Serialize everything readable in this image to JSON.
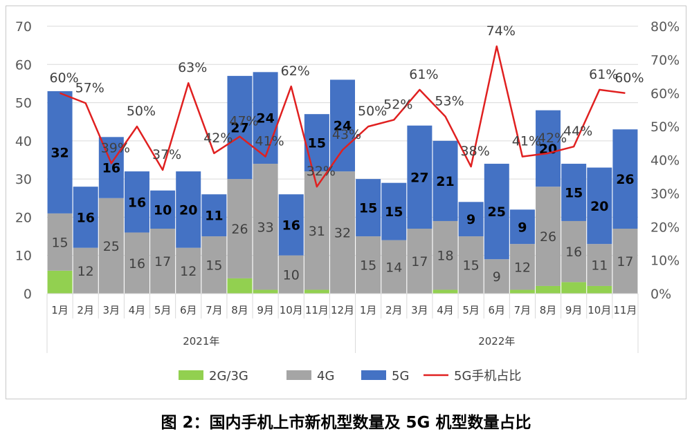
{
  "chart_data": {
    "type": "bar",
    "stacked": true,
    "categories": [
      "1月",
      "2月",
      "3月",
      "4月",
      "5月",
      "6月",
      "7月",
      "8月",
      "9月",
      "10月",
      "11月",
      "12月",
      "1月",
      "2月",
      "3月",
      "4月",
      "5月",
      "6月",
      "7月",
      "8月",
      "9月",
      "10月",
      "11月"
    ],
    "groups": [
      {
        "label": "2021年",
        "count": 12
      },
      {
        "label": "2022年",
        "count": 11
      }
    ],
    "series": [
      {
        "name": "2G/3G",
        "color": "#92d050",
        "values": [
          6,
          0,
          0,
          0,
          0,
          0,
          0,
          4,
          1,
          0,
          1,
          0,
          0,
          0,
          0,
          1,
          0,
          0,
          1,
          2,
          3,
          2,
          0
        ]
      },
      {
        "name": "4G",
        "color": "#a5a5a5",
        "values": [
          15,
          12,
          25,
          16,
          17,
          12,
          15,
          26,
          33,
          10,
          31,
          32,
          15,
          14,
          17,
          18,
          15,
          9,
          12,
          26,
          16,
          11,
          17
        ]
      },
      {
        "name": "5G",
        "color": "#4472c4",
        "values": [
          32,
          16,
          16,
          16,
          10,
          20,
          11,
          27,
          24,
          16,
          15,
          24,
          15,
          15,
          27,
          21,
          9,
          25,
          9,
          20,
          15,
          20,
          26
        ]
      }
    ],
    "line": {
      "name": "5G手机占比",
      "color": "#e02020",
      "values": [
        60,
        57,
        39,
        50,
        37,
        63,
        42,
        47,
        41,
        62,
        32,
        43,
        50,
        52,
        61,
        53,
        38,
        74,
        41,
        42,
        44,
        61,
        60
      ],
      "labels": [
        "60%",
        "57%",
        "39%",
        "50%",
        "37%",
        "63%",
        "42%",
        "47%",
        "41%",
        "62%",
        "32%",
        "43%",
        "50%",
        "52%",
        "61%",
        "53%",
        "38%",
        "74%",
        "41%",
        "42%",
        "44%",
        "61%",
        "60%"
      ]
    },
    "y_left": {
      "min": 0,
      "max": 70,
      "ticks": [
        "0",
        "10",
        "20",
        "30",
        "40",
        "50",
        "60",
        "70"
      ]
    },
    "y_right": {
      "min": 0,
      "max": 80,
      "ticks": [
        "0%",
        "10%",
        "20%",
        "30%",
        "40%",
        "50%",
        "60%",
        "70%",
        "80%"
      ]
    },
    "grid": true,
    "legend": {
      "position": "bottom",
      "labels": [
        "2G/3G",
        "4G",
        "5G",
        "5G手机占比"
      ]
    }
  },
  "caption": "图 2：国内手机上市新机型数量及 5G 机型数量占比"
}
